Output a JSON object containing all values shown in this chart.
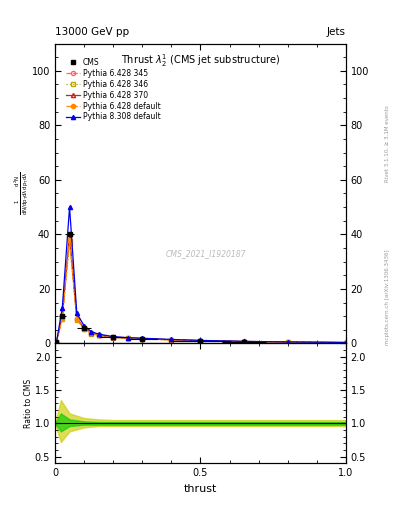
{
  "title_top": "13000 GeV pp",
  "title_right": "Jets",
  "plot_title": "Thrust $\\lambda_2^1$ (CMS jet substructure)",
  "xlabel": "thrust",
  "watermark": "CMS_2021_I1920187",
  "right_label1": "Rivet 3.1.10, ≥ 3.1M events",
  "right_label2": "mcplots.cern.ch [arXiv:1306.3436]",
  "ylim_main": [
    0,
    110
  ],
  "yticks_main": [
    0,
    20,
    40,
    60,
    80,
    100
  ],
  "xlim": [
    0.0,
    1.0
  ],
  "xticks": [
    0,
    0.5,
    1.0
  ],
  "ylim_ratio": [
    0.4,
    2.2
  ],
  "yticks_ratio": [
    0.5,
    1.0,
    1.5,
    2.0
  ],
  "x_mc": [
    0.005,
    0.025,
    0.05,
    0.075,
    0.1,
    0.125,
    0.15,
    0.2,
    0.25,
    0.3,
    0.4,
    0.5,
    0.65,
    0.8,
    1.0
  ],
  "p6_345_y": [
    0.5,
    10.0,
    40.0,
    9.0,
    5.5,
    3.8,
    3.0,
    2.2,
    1.9,
    1.7,
    1.3,
    1.0,
    0.7,
    0.5,
    0.3
  ],
  "p6_346_y": [
    0.5,
    9.0,
    37.0,
    8.5,
    5.2,
    3.6,
    2.9,
    2.1,
    1.8,
    1.6,
    1.2,
    0.9,
    0.65,
    0.45,
    0.28
  ],
  "p6_370_y": [
    0.5,
    10.0,
    40.0,
    9.2,
    5.7,
    3.9,
    3.1,
    2.3,
    2.0,
    1.8,
    1.35,
    1.05,
    0.72,
    0.52,
    0.32
  ],
  "p6_def_y": [
    0.5,
    9.5,
    38.0,
    8.8,
    5.4,
    3.7,
    3.0,
    2.2,
    1.9,
    1.7,
    1.28,
    0.98,
    0.68,
    0.48,
    0.3
  ],
  "p8_def_y": [
    0.5,
    13.0,
    50.0,
    11.0,
    6.5,
    4.3,
    3.4,
    2.5,
    2.1,
    1.9,
    1.45,
    1.1,
    0.75,
    0.55,
    0.35
  ],
  "cms_x": [
    0.005,
    0.025,
    0.05,
    0.1,
    0.2,
    0.3,
    0.5,
    0.65
  ],
  "cms_y": [
    0.5,
    10.0,
    40.0,
    5.5,
    2.2,
    1.7,
    1.0,
    0.5
  ],
  "cms_xerr": [
    0.005,
    0.012,
    0.015,
    0.025,
    0.05,
    0.05,
    0.1,
    0.075
  ],
  "cms_yerr": [
    0.05,
    0.5,
    1.0,
    0.3,
    0.1,
    0.08,
    0.05,
    0.03
  ],
  "color_p6_345": "#ff6666",
  "color_p6_346": "#bbaa00",
  "color_p6_370": "#cc2222",
  "color_p6_def": "#ff8800",
  "color_p8_def": "#0000ee",
  "ls_p6_345": "--",
  "ls_p6_346": ":",
  "ls_p6_370": "-",
  "ls_p6_def": "--",
  "ls_p8_def": "-",
  "marker_p6_345": "o",
  "marker_p6_346": "s",
  "marker_p6_370": "^",
  "marker_p6_def": "o",
  "marker_p8_def": "^",
  "yellow_x": [
    0.0,
    0.02,
    0.05,
    0.1,
    0.15,
    0.2,
    0.5,
    1.0
  ],
  "yellow_upper": [
    1.0,
    1.35,
    1.15,
    1.08,
    1.06,
    1.05,
    1.05,
    1.05
  ],
  "yellow_lower": [
    1.0,
    0.72,
    0.88,
    0.94,
    0.96,
    0.96,
    0.96,
    0.96
  ],
  "green_x": [
    0.0,
    0.02,
    0.05,
    0.1,
    0.15,
    0.2,
    0.5,
    1.0
  ],
  "green_upper": [
    1.0,
    1.15,
    1.06,
    1.03,
    1.02,
    1.02,
    1.02,
    1.02
  ],
  "green_lower": [
    1.0,
    0.88,
    0.96,
    0.98,
    0.98,
    0.98,
    0.98,
    0.98
  ]
}
